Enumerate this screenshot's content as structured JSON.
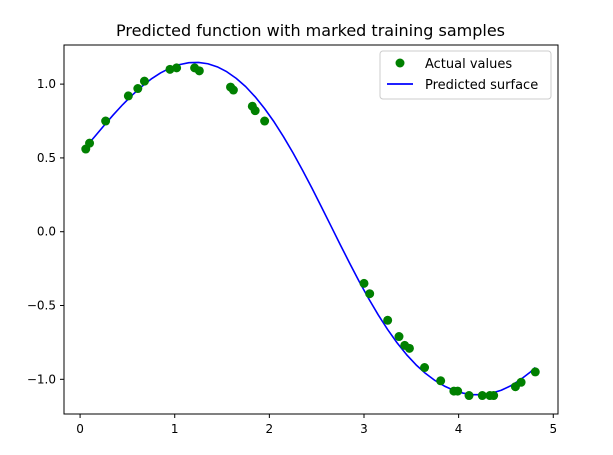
{
  "chart_data": {
    "type": "scatter",
    "title": "Predicted function with marked training samples",
    "xlabel": "",
    "ylabel": "",
    "xlim": [
      -0.17,
      5.05
    ],
    "ylim": [
      -1.235,
      1.265
    ],
    "xticks": [
      0,
      1,
      2,
      3,
      4,
      5
    ],
    "xtick_labels": [
      "0",
      "1",
      "2",
      "3",
      "4",
      "5"
    ],
    "yticks": [
      -1.0,
      -0.5,
      0.0,
      0.5,
      1.0
    ],
    "ytick_labels": [
      "−1.0",
      "−0.5",
      "0.0",
      "0.5",
      "1.0"
    ],
    "grid": false,
    "legend_position": "upper right",
    "series": [
      {
        "name": "Actual values",
        "kind": "scatter",
        "color": "#008000",
        "x": [
          0.06,
          0.1,
          0.27,
          0.51,
          0.61,
          0.68,
          0.95,
          1.02,
          1.21,
          1.26,
          1.59,
          1.62,
          1.82,
          1.85,
          1.95,
          3.0,
          3.06,
          3.25,
          3.37,
          3.43,
          3.48,
          3.64,
          3.81,
          3.95,
          3.99,
          4.11,
          4.25,
          4.33,
          4.37,
          4.6,
          4.66,
          4.81
        ],
        "y": [
          0.56,
          0.6,
          0.75,
          0.92,
          0.97,
          1.02,
          1.1,
          1.11,
          1.11,
          1.09,
          0.98,
          0.96,
          0.85,
          0.82,
          0.75,
          -0.35,
          -0.42,
          -0.6,
          -0.71,
          -0.77,
          -0.79,
          -0.92,
          -1.01,
          -1.08,
          -1.08,
          -1.11,
          -1.11,
          -1.11,
          -1.11,
          -1.05,
          -1.02,
          -0.95
        ]
      },
      {
        "name": "Predicted surface",
        "kind": "line",
        "color": "#0000ff",
        "x": [
          0.06,
          0.15,
          0.25,
          0.35,
          0.45,
          0.55,
          0.65,
          0.75,
          0.85,
          0.95,
          1.05,
          1.15,
          1.25,
          1.35,
          1.45,
          1.55,
          1.65,
          1.75,
          1.85,
          1.95,
          2.05,
          2.15,
          2.25,
          2.35,
          2.45,
          2.55,
          2.65,
          2.75,
          2.85,
          2.95,
          3.05,
          3.15,
          3.25,
          3.35,
          3.45,
          3.55,
          3.65,
          3.75,
          3.85,
          3.95,
          4.05,
          4.15,
          4.25,
          4.35,
          4.45,
          4.55,
          4.65,
          4.75,
          4.81
        ],
        "y": [
          0.575,
          0.641,
          0.717,
          0.791,
          0.861,
          0.925,
          0.983,
          1.034,
          1.076,
          1.109,
          1.132,
          1.145,
          1.147,
          1.138,
          1.117,
          1.084,
          1.039,
          0.983,
          0.914,
          0.834,
          0.744,
          0.643,
          0.534,
          0.417,
          0.295,
          0.168,
          0.04,
          -0.089,
          -0.215,
          -0.338,
          -0.454,
          -0.563,
          -0.663,
          -0.753,
          -0.833,
          -0.902,
          -0.96,
          -1.008,
          -1.046,
          -1.075,
          -1.094,
          -1.104,
          -1.104,
          -1.094,
          -1.074,
          -1.044,
          -1.004,
          -0.955,
          -0.92
        ]
      }
    ]
  },
  "colors": {
    "axes": "#000000",
    "background": "#ffffff",
    "legend_border": "#cccccc"
  }
}
